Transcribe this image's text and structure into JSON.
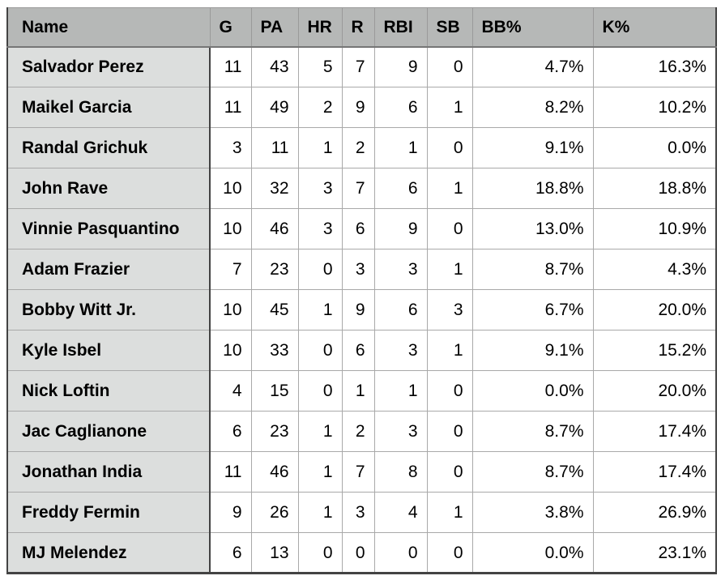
{
  "chart_data": {
    "type": "table",
    "columns": [
      "Name",
      "G",
      "PA",
      "HR",
      "R",
      "RBI",
      "SB",
      "BB%",
      "K%"
    ],
    "rows": [
      [
        "Salvador Perez",
        "11",
        "43",
        "5",
        "7",
        "9",
        "0",
        "4.7%",
        "16.3%"
      ],
      [
        "Maikel Garcia",
        "11",
        "49",
        "2",
        "9",
        "6",
        "1",
        "8.2%",
        "10.2%"
      ],
      [
        "Randal Grichuk",
        "3",
        "11",
        "1",
        "2",
        "1",
        "0",
        "9.1%",
        "0.0%"
      ],
      [
        "John Rave",
        "10",
        "32",
        "3",
        "7",
        "6",
        "1",
        "18.8%",
        "18.8%"
      ],
      [
        "Vinnie Pasquantino",
        "10",
        "46",
        "3",
        "6",
        "9",
        "0",
        "13.0%",
        "10.9%"
      ],
      [
        "Adam Frazier",
        "7",
        "23",
        "0",
        "3",
        "3",
        "1",
        "8.7%",
        "4.3%"
      ],
      [
        "Bobby Witt Jr.",
        "10",
        "45",
        "1",
        "9",
        "6",
        "3",
        "6.7%",
        "20.0%"
      ],
      [
        "Kyle Isbel",
        "10",
        "33",
        "0",
        "6",
        "3",
        "1",
        "9.1%",
        "15.2%"
      ],
      [
        "Nick Loftin",
        "4",
        "15",
        "0",
        "1",
        "1",
        "0",
        "0.0%",
        "20.0%"
      ],
      [
        "Jac Caglianone",
        "6",
        "23",
        "1",
        "2",
        "3",
        "0",
        "8.7%",
        "17.4%"
      ],
      [
        "Jonathan India",
        "11",
        "46",
        "1",
        "7",
        "8",
        "0",
        "8.7%",
        "17.4%"
      ],
      [
        "Freddy Fermin",
        "9",
        "26",
        "1",
        "3",
        "4",
        "1",
        "3.8%",
        "26.9%"
      ],
      [
        "MJ Melendez",
        "6",
        "13",
        "0",
        "0",
        "0",
        "0",
        "0.0%",
        "23.1%"
      ]
    ],
    "layout": {
      "header_align": "left",
      "name_column_align": "left",
      "value_columns_align": "right",
      "grid": true
    }
  },
  "colors": {
    "header_bg": "#b6b8b7",
    "name_column_bg": "#dcdedd",
    "cell_bg": "#ffffff",
    "grid_line": "#a9a9a9",
    "dark_border": "#434343",
    "text": "#000000"
  }
}
